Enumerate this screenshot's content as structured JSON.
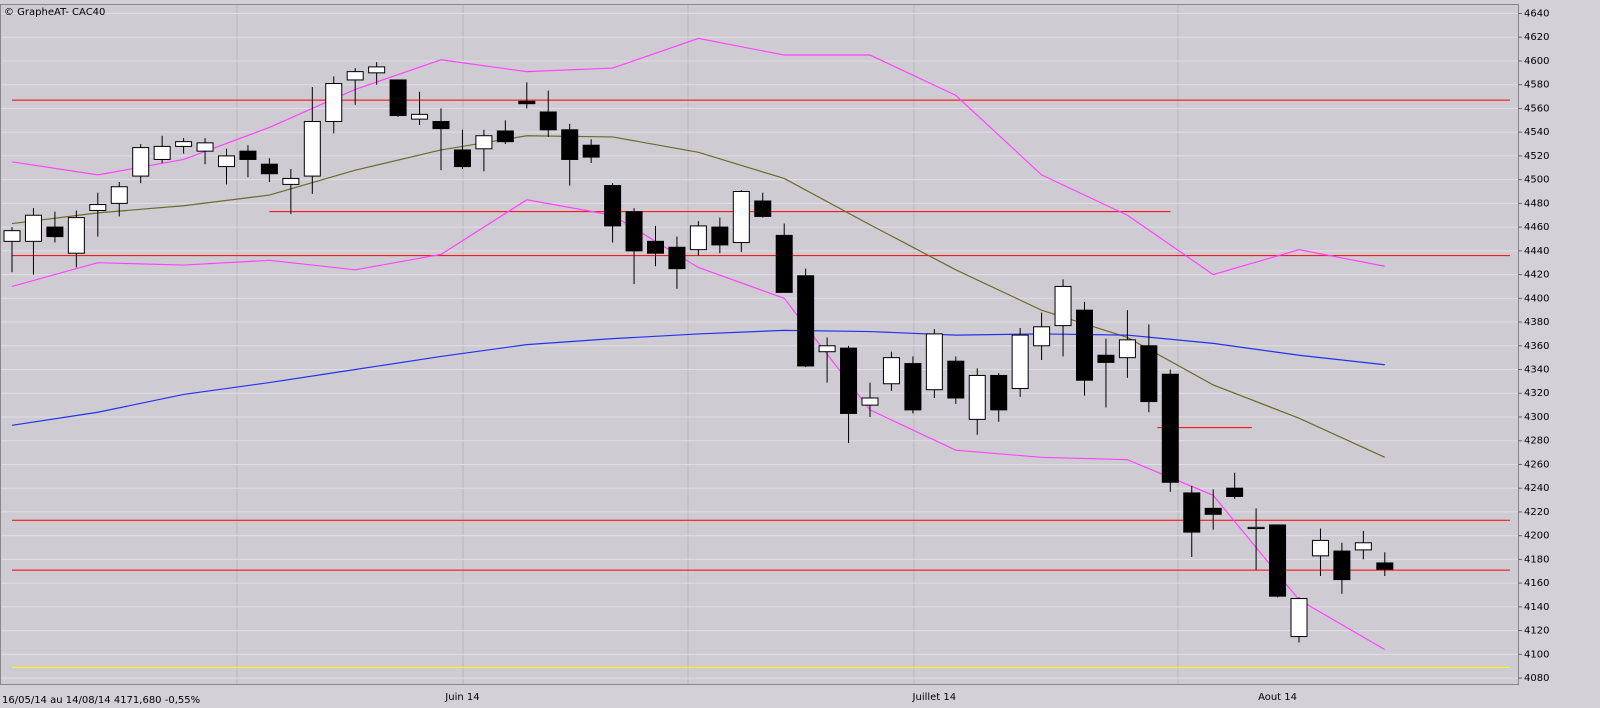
{
  "chart_data": {
    "type": "candlestick",
    "title": "© GrapheAT- CAC40",
    "info": "16/05/14 au 14/08/14  4171,680  -0,55%",
    "categories": [
      null,
      null,
      null,
      null,
      null,
      null,
      null,
      null,
      null,
      null,
      null,
      null,
      null,
      null,
      null,
      null,
      null,
      null,
      null,
      null,
      null,
      "Juin 14",
      null,
      null,
      null,
      null,
      null,
      null,
      null,
      null,
      null,
      null,
      null,
      null,
      null,
      null,
      null,
      null,
      null,
      null,
      null,
      null,
      null,
      "Juillet 14",
      null,
      null,
      null,
      null,
      null,
      null,
      null,
      null,
      null,
      null,
      null,
      null,
      null,
      null,
      null,
      "Aout 14",
      null,
      null,
      null,
      null,
      null
    ],
    "open": [
      4448,
      4448,
      4460,
      4438,
      4474,
      4480,
      4503,
      4517,
      4528,
      4524,
      4511,
      4524,
      4513,
      4496,
      4503,
      4549,
      4584,
      4590,
      4584,
      4551,
      4549,
      4525,
      4526,
      4541,
      4566,
      4557,
      4542,
      4529,
      4495,
      4473,
      4448,
      4443,
      4441,
      4460,
      4447,
      4482,
      4453,
      4419,
      4355,
      4358,
      4310,
      4328,
      4345,
      4323,
      4347,
      4298,
      4335,
      4324,
      4360,
      4377,
      4390,
      4352,
      4350,
      4360,
      4336,
      4236,
      4223,
      4240,
      4206,
      4209,
      4115,
      4183,
      4187,
      4188,
      4177
    ],
    "high": [
      4460,
      4476,
      4473,
      4474,
      4489,
      4498,
      4530,
      4537,
      4535,
      4535,
      4526,
      4529,
      4518,
      4509,
      4578,
      4587,
      4594,
      4599,
      4584,
      4574,
      4560,
      4542,
      4542,
      4550,
      4582,
      4575,
      4547,
      4534,
      4497,
      4476,
      4461,
      4452,
      4465,
      4468,
      4491,
      4489,
      4463,
      4425,
      4367,
      4360,
      4329,
      4355,
      4351,
      4374,
      4351,
      4341,
      4337,
      4375,
      4388,
      4416,
      4397,
      4366,
      4390,
      4378,
      4340,
      4242,
      4239,
      4253,
      4223,
      4209,
      4148,
      4206,
      4194,
      4204,
      4186
    ],
    "low": [
      4422,
      4420,
      4447,
      4426,
      4452,
      4469,
      4497,
      4514,
      4522,
      4513,
      4496,
      4502,
      4498,
      4471,
      4488,
      4539,
      4563,
      4580,
      4553,
      4546,
      4508,
      4509,
      4507,
      4530,
      4560,
      4536,
      4495,
      4514,
      4447,
      4412,
      4427,
      4408,
      4436,
      4438,
      4439,
      4468,
      4405,
      4342,
      4329,
      4278,
      4300,
      4322,
      4303,
      4316,
      4311,
      4285,
      4296,
      4317,
      4348,
      4351,
      4318,
      4308,
      4333,
      4304,
      4237,
      4182,
      4205,
      4231,
      4171,
      4148,
      4110,
      4166,
      4151,
      4180,
      4166
    ],
    "close": [
      4457,
      4470,
      4452,
      4468,
      4479,
      4494,
      4527,
      4528,
      4532,
      4531,
      4520,
      4517,
      4505,
      4501,
      4549,
      4581,
      4591,
      4595,
      4554,
      4555,
      4543,
      4511,
      4537,
      4532,
      4564,
      4542,
      4517,
      4519,
      4461,
      4440,
      4438,
      4425,
      4461,
      4445,
      4490,
      4469,
      4405,
      4343,
      4360,
      4303,
      4316,
      4350,
      4306,
      4370,
      4316,
      4335,
      4306,
      4369,
      4376,
      4410,
      4331,
      4346,
      4365,
      4313,
      4245,
      4203,
      4218,
      4233,
      4207,
      4149,
      4147,
      4196,
      4163,
      4194,
      4171.68
    ],
    "up_color": "#ffffff",
    "down_color": "#000000",
    "series": [
      {
        "color": "#ff44ff",
        "x": [
          0,
          4,
          8,
          12,
          16,
          20,
          24,
          28,
          32,
          36,
          40,
          44,
          48,
          52,
          56,
          60,
          64
        ],
        "values": [
          4515,
          4504,
          4517,
          4544,
          4576,
          4601,
          4591,
          4594,
          4619,
          4605,
          4605,
          4571,
          4504,
          4470,
          4420,
          4441,
          4427
        ]
      },
      {
        "color": "#ff44ff",
        "x": [
          0,
          4,
          8,
          12,
          16,
          20,
          24,
          28,
          32,
          36,
          40,
          44,
          48,
          52,
          56,
          60,
          64
        ],
        "values": [
          4410,
          4430,
          4428,
          4432,
          4424,
          4437,
          4483,
          4470,
          4426,
          4400,
          4306,
          4272,
          4266,
          4264,
          4234,
          4146,
          4104
        ]
      },
      {
        "color": "#6b6b2a",
        "x": [
          0,
          4,
          8,
          12,
          16,
          20,
          24,
          28,
          32,
          36,
          40,
          44,
          48,
          52,
          56,
          60,
          64
        ],
        "values": [
          4463,
          4472,
          4478,
          4487,
          4508,
          4525,
          4537,
          4536,
          4523,
          4501,
          4462,
          4424,
          4390,
          4367,
          4327,
          4299,
          4266
        ]
      },
      {
        "color": "#2233ee",
        "x": [
          0,
          4,
          8,
          12,
          16,
          20,
          24,
          28,
          32,
          36,
          40,
          44,
          48,
          52,
          56,
          60,
          64
        ],
        "values": [
          4293,
          4304,
          4319,
          4329,
          4340,
          4351,
          4361,
          4366,
          4370,
          4373,
          4372,
          4369,
          4370,
          4369,
          4362,
          4352,
          4344
        ]
      }
    ],
    "hlines": [
      {
        "value": 4567,
        "color": "#ff0000"
      },
      {
        "value": 4473,
        "color": "#ff0000",
        "from": 12,
        "to": 54
      },
      {
        "value": 4436,
        "color": "#ff0000"
      },
      {
        "value": 4213,
        "color": "#ff0000"
      },
      {
        "value": 4171,
        "color": "#ff0000"
      },
      {
        "value": 4291,
        "color": "#ff0000",
        "from": 53.4,
        "to": 57.8
      },
      {
        "value": 4089,
        "color": "#ffff00"
      }
    ],
    "ylim": [
      4075,
      4648
    ],
    "yticks": [
      4080,
      4100,
      4120,
      4140,
      4160,
      4180,
      4200,
      4220,
      4240,
      4260,
      4280,
      4300,
      4320,
      4340,
      4360,
      4380,
      4400,
      4420,
      4440,
      4460,
      4480,
      4500,
      4520,
      4540,
      4560,
      4580,
      4600,
      4620,
      4640
    ],
    "grid": true
  }
}
